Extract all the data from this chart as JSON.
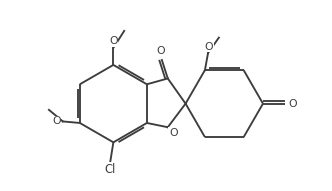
{
  "bg": "#ffffff",
  "lc": "#3d3d3d",
  "lw": 1.35,
  "fs": 7.8,
  "figsize": [
    3.32,
    1.91
  ],
  "dpi": 100,
  "xlim": [
    -1.3,
    2.5
  ],
  "ylim": [
    -0.7,
    1.75
  ]
}
